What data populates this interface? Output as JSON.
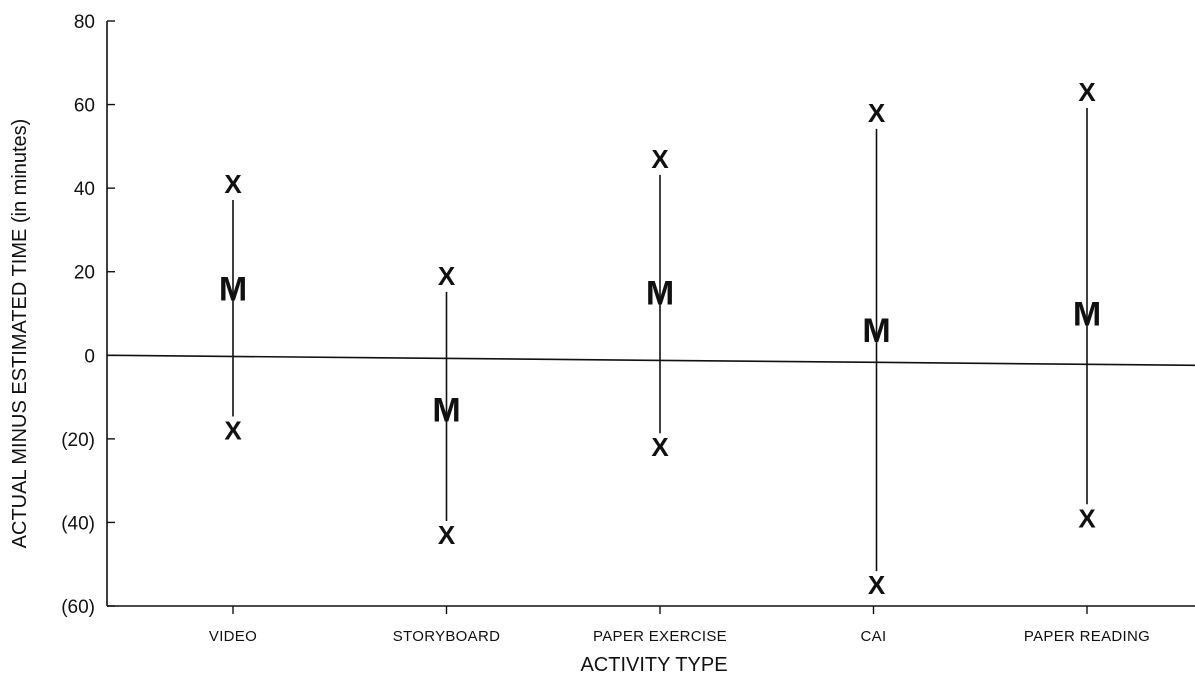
{
  "chart_data": {
    "type": "range",
    "title": "",
    "xlabel": "ACTIVITY TYPE",
    "ylabel": "ACTUAL MINUS ESTIMATED TIME (in minutes)",
    "ylim": [
      -60,
      80
    ],
    "yticks": [
      80,
      60,
      40,
      20,
      0,
      -20,
      -40,
      -60
    ],
    "ytick_labels": [
      "80",
      "60",
      "40",
      "20",
      "0",
      "(20)",
      "(40)",
      "(60)"
    ],
    "categories": [
      "VIDEO",
      "STORYBOARD",
      "PAPER EXERCISE",
      "CAI",
      "PAPER READING"
    ],
    "series": [
      {
        "marker": "X",
        "values": [
          41,
          19,
          47,
          58,
          63
        ]
      },
      {
        "marker": "M",
        "values": [
          16,
          -13,
          15,
          6,
          10
        ]
      },
      {
        "marker": "X",
        "values": [
          -18,
          -43,
          -22,
          -55,
          -39
        ]
      }
    ],
    "legend": false,
    "grid": false
  }
}
